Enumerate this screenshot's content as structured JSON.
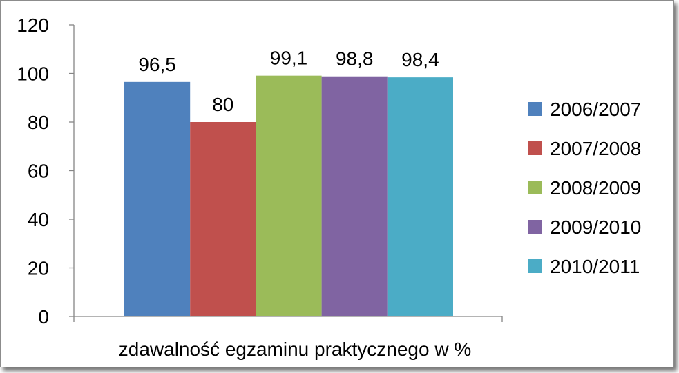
{
  "chart_data": {
    "type": "bar",
    "categories": [
      "zdawalność egzaminu praktycznego w %"
    ],
    "series": [
      {
        "name": "2006/2007",
        "values": [
          96.5
        ],
        "label": "96,5",
        "color": "#4F81BD"
      },
      {
        "name": "2007/2008",
        "values": [
          80
        ],
        "label": "80",
        "color": "#C0504D"
      },
      {
        "name": "2008/2009",
        "values": [
          99.1
        ],
        "label": "99,1",
        "color": "#9BBB59"
      },
      {
        "name": "2009/2010",
        "values": [
          98.8
        ],
        "label": "98,8",
        "color": "#8064A2"
      },
      {
        "name": "2010/2011",
        "values": [
          98.4
        ],
        "label": "98,4",
        "color": "#4BACC6"
      }
    ],
    "yticks": [
      "0",
      "20",
      "40",
      "60",
      "80",
      "100",
      "120"
    ],
    "ylim": [
      0,
      120
    ],
    "grid": false,
    "legend": "right"
  }
}
